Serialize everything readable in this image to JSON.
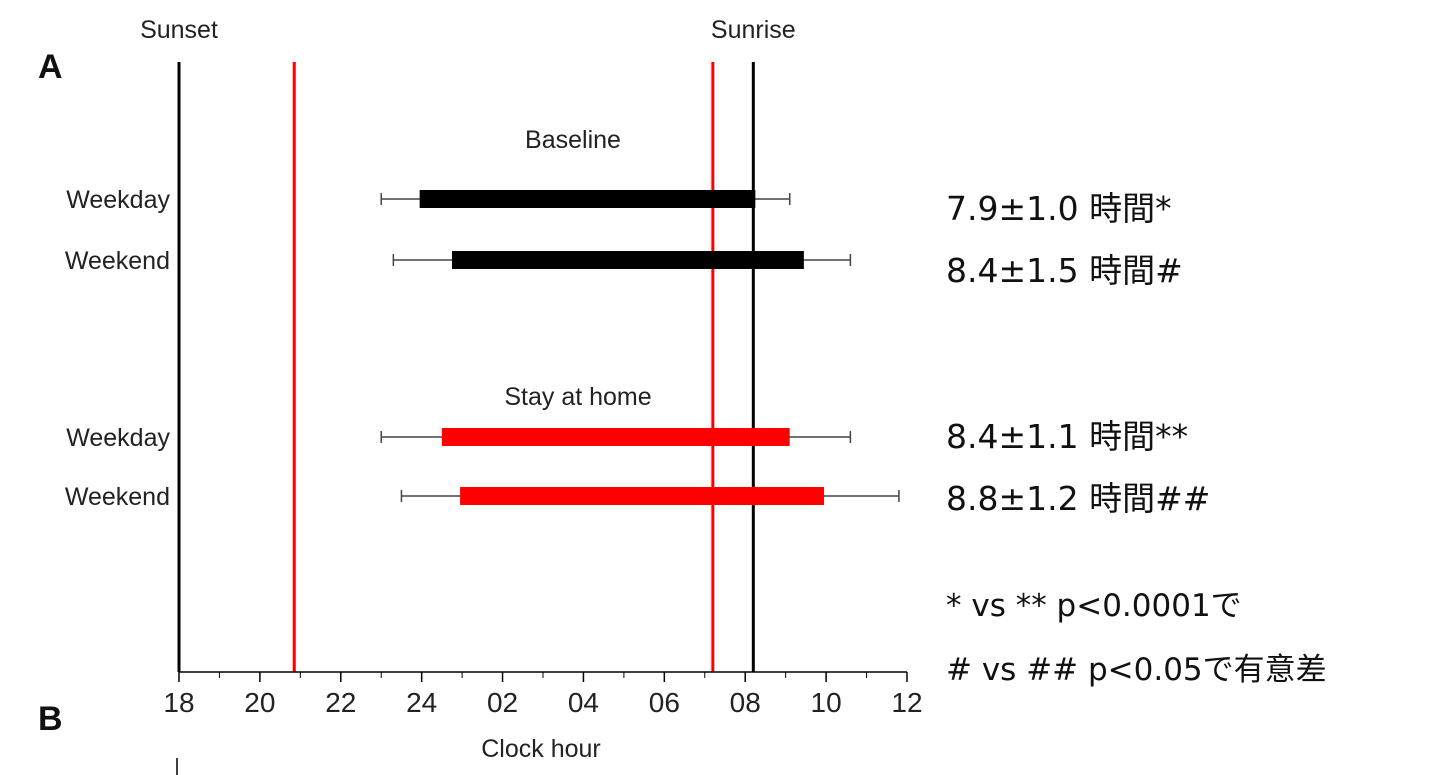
{
  "panel_labels": {
    "a": "A",
    "b": "B"
  },
  "chart_data": {
    "type": "bar",
    "subtype": "horizontal-range-with-error-bars",
    "xlabel": "Clock hour",
    "x_ticks": [
      {
        "value": 18,
        "label": "18"
      },
      {
        "value": 20,
        "label": "20"
      },
      {
        "value": 22,
        "label": "22"
      },
      {
        "value": 24,
        "label": "24"
      },
      {
        "value": 26,
        "label": "02"
      },
      {
        "value": 28,
        "label": "04"
      },
      {
        "value": 30,
        "label": "06"
      },
      {
        "value": 32,
        "label": "08"
      },
      {
        "value": 34,
        "label": "10"
      },
      {
        "value": 36,
        "label": "12"
      }
    ],
    "xlim": [
      18,
      36
    ],
    "colors": {
      "baseline": "#000000",
      "stay_at_home": "#ff0000"
    },
    "groups": [
      {
        "label": "Baseline",
        "color": "#000000",
        "rows": [
          {
            "category": "Weekday",
            "start": 23.95,
            "end": 32.25,
            "start_err_low": 23.0,
            "end_err_high": 33.1
          },
          {
            "category": "Weekend",
            "start": 24.75,
            "end": 33.45,
            "start_err_low": 23.3,
            "end_err_high": 34.6
          }
        ],
        "annotations": [
          "7.9±1.0 時間*",
          "8.4±1.5 時間#"
        ]
      },
      {
        "label": "Stay at home",
        "color": "#ff0000",
        "rows": [
          {
            "category": "Weekday",
            "start": 24.5,
            "end": 33.1,
            "start_err_low": 23.0,
            "end_err_high": 34.6
          },
          {
            "category": "Weekend",
            "start": 24.95,
            "end": 33.95,
            "start_err_low": 23.5,
            "end_err_high": 35.8
          }
        ],
        "annotations": [
          "8.4±1.1 時間**",
          "8.8±1.2 時間##"
        ]
      }
    ],
    "reference_lines": [
      {
        "name": "Sunset",
        "value": 18.0,
        "color": "#000000",
        "label_shown": true
      },
      {
        "name": "Sunrise",
        "value": 32.2,
        "color": "#000000",
        "label_shown": true
      },
      {
        "value": 20.85,
        "color": "#ff0000",
        "label_shown": false
      },
      {
        "value": 31.2,
        "color": "#ff0000",
        "label_shown": false
      }
    ],
    "significance_notes": [
      "* vs ** p<0.0001で",
      "# vs ## p<0.05で有意差"
    ]
  }
}
